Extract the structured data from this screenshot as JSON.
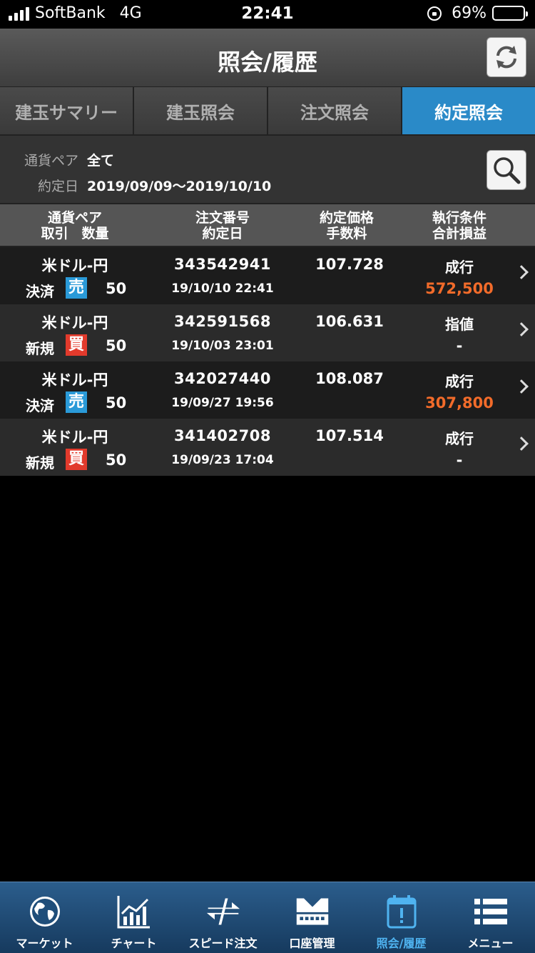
{
  "status_bar": {
    "carrier": "SoftBank",
    "network": "4G",
    "time": "22:41",
    "battery": "69%",
    "battery_level": 0.69
  },
  "header": {
    "title": "照会/履歴",
    "refresh_icon": "refresh-icon"
  },
  "tabs": [
    {
      "label": "建玉サマリー",
      "active": false
    },
    {
      "label": "建玉照会",
      "active": false
    },
    {
      "label": "注文照会",
      "active": false
    },
    {
      "label": "約定照会",
      "active": true
    }
  ],
  "filter": {
    "pair_label": "通貨ペア",
    "pair_value": "全て",
    "date_label": "約定日",
    "date_value": "2019/09/09〜2019/10/10"
  },
  "columns": {
    "col1_line1": "通貨ペア",
    "col1_line2": "取引　数量",
    "col2_line1": "注文番号",
    "col2_line2": "約定日",
    "col3_line1": "約定価格",
    "col3_line2": "手数料",
    "col4_line1": "執行条件",
    "col4_line2": "合計損益"
  },
  "rows": [
    {
      "pair": "米ドル-円",
      "trade_type": "決済",
      "side": "売",
      "qty": "50",
      "order_no": "343542941",
      "datetime": "19/10/10 22:41",
      "price": "107.728",
      "condition": "成行",
      "pnl": "572,500"
    },
    {
      "pair": "米ドル-円",
      "trade_type": "新規",
      "side": "買",
      "qty": "50",
      "order_no": "342591568",
      "datetime": "19/10/03 23:01",
      "price": "106.631",
      "condition": "指値",
      "pnl": "-"
    },
    {
      "pair": "米ドル-円",
      "trade_type": "決済",
      "side": "売",
      "qty": "50",
      "order_no": "342027440",
      "datetime": "19/09/27 19:56",
      "price": "108.087",
      "condition": "成行",
      "pnl": "307,800"
    },
    {
      "pair": "米ドル-円",
      "trade_type": "新規",
      "side": "買",
      "qty": "50",
      "order_no": "341402708",
      "datetime": "19/09/23 17:04",
      "price": "107.514",
      "condition": "成行",
      "pnl": "-"
    }
  ],
  "nav": [
    {
      "label": "マーケット",
      "icon": "globe-icon",
      "active": false
    },
    {
      "label": "チャート",
      "icon": "chart-icon",
      "active": false
    },
    {
      "label": "スピード注文",
      "icon": "speed-order-icon",
      "active": false
    },
    {
      "label": "口座管理",
      "icon": "account-icon",
      "active": false
    },
    {
      "label": "照会/履歴",
      "icon": "history-icon",
      "active": true
    },
    {
      "label": "メニュー",
      "icon": "menu-icon",
      "active": false
    }
  ],
  "colors": {
    "accent": "#2a8ac8",
    "sell": "#2a9ad8",
    "buy": "#e23a2c",
    "profit": "#f26b2a",
    "nav_active": "#4fb3f0"
  }
}
